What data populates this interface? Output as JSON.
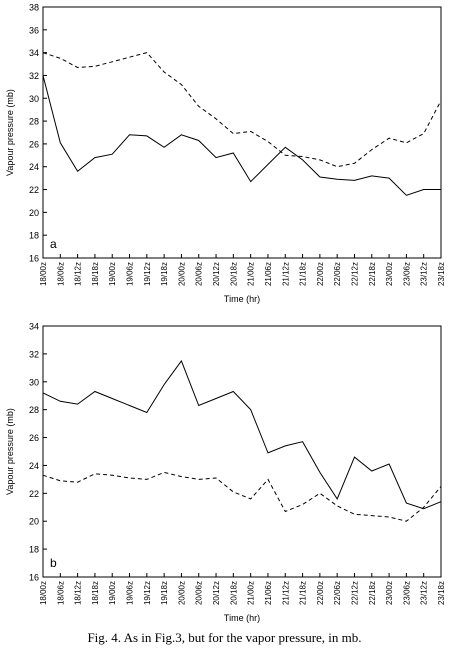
{
  "caption": "Fig. 4. As in Fig.3, but for the vapor pressure, in mb.",
  "chart_data": [
    {
      "type": "line",
      "panel_label": "a",
      "xlabel": "Time (hr)",
      "ylabel": "Vapour pressure (mb)",
      "ylim": [
        16,
        38
      ],
      "yticks": [
        16,
        18,
        20,
        22,
        24,
        26,
        28,
        30,
        32,
        34,
        36,
        38
      ],
      "grid": false,
      "categories": [
        "18/00z",
        "18/06z",
        "18/12z",
        "18/18z",
        "19/00z",
        "19/06z",
        "19/12z",
        "19/18z",
        "20/00z",
        "20/06z",
        "20/12z",
        "20/18z",
        "21/00z",
        "21/06z",
        "21/12z",
        "21/18z",
        "22/00z",
        "22/06z",
        "22/12z",
        "22/18z",
        "23/00z",
        "23/06z",
        "23/12z",
        "23/18z"
      ],
      "series": [
        {
          "style": "solid",
          "values": [
            32.0,
            26.1,
            23.6,
            24.8,
            25.1,
            26.8,
            26.7,
            25.7,
            26.8,
            26.3,
            24.8,
            25.2,
            22.7,
            24.2,
            25.7,
            24.6,
            23.1,
            22.9,
            22.8,
            23.2,
            23.0,
            21.5,
            22.0,
            22.0
          ]
        },
        {
          "style": "dashed",
          "values": [
            34.0,
            33.5,
            32.7,
            32.8,
            33.2,
            33.6,
            34.0,
            32.3,
            31.2,
            29.3,
            28.2,
            26.9,
            27.1,
            26.2,
            25.0,
            24.9,
            24.6,
            24.0,
            24.3,
            25.5,
            26.5,
            26.1,
            26.9,
            29.8
          ]
        }
      ]
    },
    {
      "type": "line",
      "panel_label": "b",
      "xlabel": "Time (hr)",
      "ylabel": "Vapour pressure (mb)",
      "ylim": [
        16,
        34
      ],
      "yticks": [
        16,
        18,
        20,
        22,
        24,
        26,
        28,
        30,
        32,
        34
      ],
      "grid": false,
      "categories": [
        "18/00z",
        "18/06z",
        "18/12z",
        "18/18z",
        "19/00z",
        "19/06z",
        "19/12z",
        "19/18z",
        "20/00z",
        "20/06z",
        "20/12z",
        "20/18z",
        "21/00z",
        "21/06z",
        "21/12z",
        "21/18z",
        "22/00z",
        "22/06z",
        "22/12z",
        "22/18z",
        "23/00z",
        "23/06z",
        "23/12z",
        "23/18z"
      ],
      "series": [
        {
          "style": "solid",
          "values": [
            29.2,
            28.6,
            28.4,
            29.3,
            28.8,
            28.3,
            27.8,
            29.8,
            31.5,
            28.3,
            28.8,
            29.3,
            28.0,
            24.9,
            25.4,
            25.7,
            23.5,
            21.6,
            24.6,
            23.6,
            24.1,
            21.3,
            20.9,
            21.4
          ]
        },
        {
          "style": "dashed",
          "values": [
            23.3,
            22.9,
            22.8,
            23.4,
            23.3,
            23.1,
            23.0,
            23.5,
            23.2,
            23.0,
            23.1,
            22.1,
            21.6,
            23.0,
            20.7,
            21.2,
            22.0,
            21.1,
            20.5,
            20.4,
            20.3,
            20.0,
            21.0,
            22.5
          ]
        }
      ]
    }
  ]
}
